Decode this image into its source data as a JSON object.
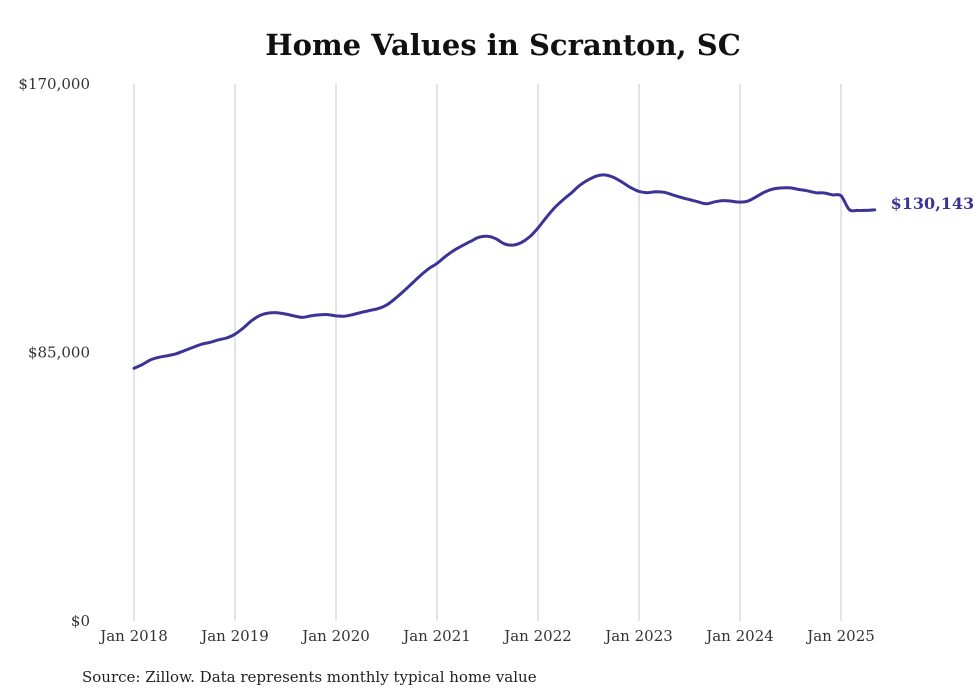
{
  "chart_data": {
    "type": "line",
    "title": "Home Values in Scranton, SC",
    "source": "Source: Zillow. Data represents monthly typical home value",
    "xlabel": "",
    "ylabel": "",
    "ylim": [
      0,
      170000
    ],
    "yticks": [
      {
        "value": 0,
        "label": "$0"
      },
      {
        "value": 85000,
        "label": "$85,000"
      },
      {
        "value": 170000,
        "label": "$170,000"
      }
    ],
    "xlim": [
      "2018-01",
      "2025-05"
    ],
    "xticks": [
      {
        "x": "2018-01",
        "label": "Jan 2018"
      },
      {
        "x": "2019-01",
        "label": "Jan 2019"
      },
      {
        "x": "2020-01",
        "label": "Jan 2020"
      },
      {
        "x": "2021-01",
        "label": "Jan 2021"
      },
      {
        "x": "2022-01",
        "label": "Jan 2022"
      },
      {
        "x": "2023-01",
        "label": "Jan 2023"
      },
      {
        "x": "2024-01",
        "label": "Jan 2024"
      },
      {
        "x": "2025-01",
        "label": "Jan 2025"
      }
    ],
    "grid": {
      "vertical": true,
      "horizontal": false
    },
    "line_color": "#3b3496",
    "end_label": "$130,143",
    "series": [
      {
        "name": "",
        "x": [
          "2018-01",
          "2018-02",
          "2018-03",
          "2018-04",
          "2018-05",
          "2018-06",
          "2018-07",
          "2018-08",
          "2018-09",
          "2018-10",
          "2018-11",
          "2018-12",
          "2019-01",
          "2019-02",
          "2019-03",
          "2019-04",
          "2019-05",
          "2019-06",
          "2019-07",
          "2019-08",
          "2019-09",
          "2019-10",
          "2019-11",
          "2019-12",
          "2020-01",
          "2020-02",
          "2020-03",
          "2020-04",
          "2020-05",
          "2020-06",
          "2020-07",
          "2020-08",
          "2020-09",
          "2020-10",
          "2020-11",
          "2020-12",
          "2021-01",
          "2021-02",
          "2021-03",
          "2021-04",
          "2021-05",
          "2021-06",
          "2021-07",
          "2021-08",
          "2021-09",
          "2021-10",
          "2021-11",
          "2021-12",
          "2022-01",
          "2022-02",
          "2022-03",
          "2022-04",
          "2022-05",
          "2022-06",
          "2022-07",
          "2022-08",
          "2022-09",
          "2022-10",
          "2022-11",
          "2022-12",
          "2023-01",
          "2023-02",
          "2023-03",
          "2023-04",
          "2023-05",
          "2023-06",
          "2023-07",
          "2023-08",
          "2023-09",
          "2023-10",
          "2023-11",
          "2023-12",
          "2024-01",
          "2024-02",
          "2024-03",
          "2024-04",
          "2024-05",
          "2024-06",
          "2024-07",
          "2024-08",
          "2024-09",
          "2024-10",
          "2024-11",
          "2024-12",
          "2025-01",
          "2025-02",
          "2025-03",
          "2025-04",
          "2025-05"
        ],
        "y": [
          80000,
          81200,
          82700,
          83500,
          84000,
          84600,
          85600,
          86600,
          87600,
          88200,
          89000,
          89600,
          90800,
          92800,
          95100,
          96800,
          97500,
          97600,
          97200,
          96600,
          96100,
          96600,
          96900,
          97000,
          96600,
          96500,
          97000,
          97700,
          98300,
          98900,
          100000,
          102000,
          104300,
          106800,
          109300,
          111500,
          113200,
          115400,
          117300,
          118800,
          120200,
          121500,
          121800,
          121000,
          119400,
          119000,
          119800,
          121600,
          124400,
          127800,
          130900,
          133400,
          135600,
          138000,
          139700,
          140900,
          141200,
          140400,
          138900,
          137200,
          136000,
          135600,
          135900,
          135700,
          134900,
          134100,
          133400,
          132700,
          132100,
          132700,
          133100,
          132900,
          132600,
          133000,
          134400,
          135900,
          136800,
          137100,
          137100,
          136600,
          136200,
          135600,
          135500,
          134900,
          134600,
          130200,
          130000,
          130000,
          130143
        ]
      }
    ]
  }
}
